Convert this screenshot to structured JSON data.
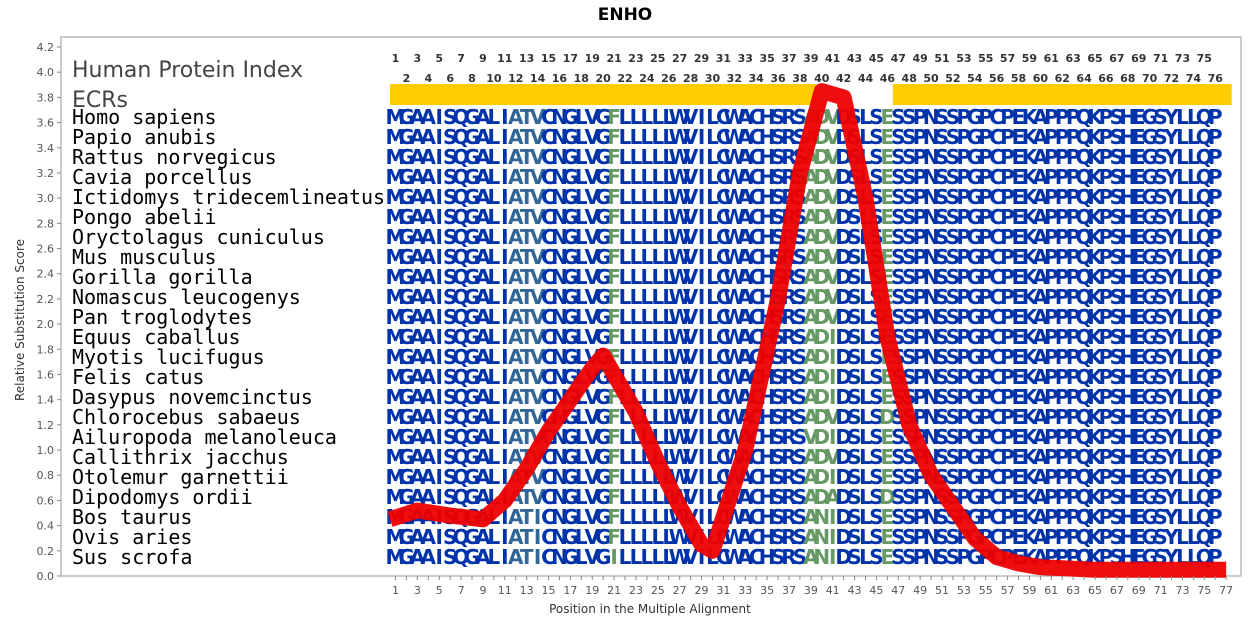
{
  "chart_data": {
    "type": "line",
    "title": "ENHO",
    "xlabel": "Position in the Multiple Alignment",
    "ylabel": "Relative Substitution Score",
    "xlim": [
      0.5,
      77.5
    ],
    "ylim": [
      0,
      4.2
    ],
    "y_ticks": [
      "0.0",
      "0.2",
      "0.4",
      "0.6",
      "0.8",
      "1.0",
      "1.2",
      "1.4",
      "1.6",
      "1.8",
      "2.0",
      "2.2",
      "2.4",
      "2.6",
      "2.8",
      "3.0",
      "3.2",
      "3.4",
      "3.6",
      "3.8",
      "4.0",
      "4.2"
    ],
    "x_ticks": [
      "1",
      "3",
      "5",
      "7",
      "9",
      "11",
      "13",
      "15",
      "17",
      "19",
      "21",
      "23",
      "25",
      "27",
      "29",
      "31",
      "33",
      "35",
      "37",
      "39",
      "41",
      "43",
      "45",
      "47",
      "49",
      "51",
      "53",
      "55",
      "57",
      "59",
      "61",
      "63",
      "65",
      "67",
      "69",
      "71",
      "73",
      "75",
      "77"
    ],
    "top_numbers_odd": [
      "1",
      "3",
      "5",
      "7",
      "9",
      "11",
      "13",
      "15",
      "17",
      "19",
      "21",
      "23",
      "25",
      "27",
      "29",
      "31",
      "33",
      "35",
      "37",
      "39",
      "41",
      "43",
      "45",
      "47",
      "49",
      "51",
      "53",
      "55",
      "57",
      "59",
      "61",
      "63",
      "65",
      "67",
      "69",
      "71",
      "73",
      "75"
    ],
    "top_numbers_even": [
      "2",
      "4",
      "6",
      "8",
      "10",
      "12",
      "14",
      "16",
      "18",
      "20",
      "22",
      "24",
      "26",
      "28",
      "30",
      "32",
      "34",
      "36",
      "38",
      "40",
      "42",
      "44",
      "46",
      "48",
      "50",
      "52",
      "54",
      "56",
      "58",
      "60",
      "62",
      "64",
      "66",
      "68",
      "70",
      "72",
      "74",
      "76"
    ],
    "series": [
      {
        "color": "#ee0000",
        "x": [
          0.5,
          3,
          6,
          9,
          11,
          13,
          15,
          17,
          19,
          20,
          21,
          23,
          25,
          27,
          29,
          30,
          33,
          36,
          38,
          40,
          42,
          44,
          46,
          48,
          50,
          52,
          54,
          56,
          58,
          60,
          65,
          70,
          77
        ],
        "y": [
          0.45,
          0.52,
          0.48,
          0.45,
          0.6,
          0.85,
          1.15,
          1.4,
          1.65,
          1.75,
          1.6,
          1.3,
          0.9,
          0.55,
          0.25,
          0.2,
          1.0,
          2.2,
          3.2,
          3.85,
          3.8,
          3.0,
          1.9,
          1.2,
          0.8,
          0.55,
          0.3,
          0.15,
          0.1,
          0.07,
          0.05,
          0.05,
          0.05
        ]
      }
    ],
    "ecr_segments": [
      [
        1,
        21
      ],
      [
        22,
        39
      ],
      [
        47,
        77
      ]
    ],
    "ecr_color": "#ffcc00",
    "grid": false,
    "legend": "none"
  },
  "labels": {
    "human_protein_index": "Human Protein Index",
    "ecrs": "ECRs"
  },
  "alignment": {
    "species": [
      "Homo sapiens",
      "Papio anubis",
      "Rattus norvegicus",
      "Cavia porcellus",
      "Ictidomys tridecemlineatus",
      "Pongo abelii",
      "Oryctolagus cuniculus",
      "Mus musculus",
      "Gorilla gorilla",
      "Nomascus leucogenys",
      "Pan troglodytes",
      "Equus caballus",
      "Myotis lucifugus",
      "Felis catus",
      "Dasypus novemcinctus",
      "Chlorocebus sabaeus",
      "Ailuropoda melanoleuca",
      "Callithrix jacchus",
      "Otolemur garnettii",
      "Dipodomys ordii",
      "Bos taurus",
      "Ovis aries",
      "Sus scrofa"
    ],
    "sequences": [
      "MGAAISQGALIATVCNGLVGFLLLLLWVILCWACHSRSADVDSLSESSPNSSPGPCPEKAPPPQKPSHEGSYLLQP",
      "MGAAISQGALIATVCNGLVGFLLLLLWVILCWACHSRSADVDSLSESSPNSSPGPCPEKAPPPQKPSHEGSYLLQP",
      "MGAAISQGALIATVCNGLVGFLLLLLWVILCWACHSRSADVDSLSESSPNSSPGPCPEKAPPPQKPSHEGSYLLQP",
      "MGAAISQGALIATVCNGLVGFLLLLLWVILCWACHSRSADVDSLSESSPNSSPGPCPEKAPPPQKPSHEGSYLLQP",
      "MGAAISQGALIATVCNGLVGFLLLLLWVILCWACHSRSADVDSLSESSPNSSPGPCPEKAPPPQKPSHEGSYLLQP",
      "MGAAISQGALIATVCNGLVGFLLLLLWVILCWACHSRSADVDSLSESSPNSSPGPCPEKAPPPQKPSHEGSYLLQP",
      "MGAAISQGALIATVCNGLVGFLLLLLWVILCWACHSRSADVDSLSESSPNSSPGPCPEKAPPPQKPSHEGSYLLQP",
      "MGAAISQGALIATVCNGLVGFLLLLLWVILCWACHSRSADVDSLSESSPNSSPGPCPEKAPPPQKPSHEGSYLLQP",
      "MGAAISQGALIATVCNGLVGFLLLLLWVILCWACHSRSADVDSLSESSPNSSPGPCPEKAPPPQKPSHEGSYLLQP",
      "MGAAISQGALIATVCNGLVGFLLLLLWVILCWACHSRSADVDSLSESSPNSSPGPCPEKAPPPQKPSHEGSYLLQP",
      "MGAAISQGALIATVCNGLVGFLLLLLWVILCWACHSRSADVDSLSESSPNSSPGPCPEKAPPPQKPSHEGSYLLQP",
      "MGAAISQGALIATVCNGLVGFLLLLLWVILCWACHSRSADIDSLSESSPNSSPGPCPEKAPPPQKPSHEGSYLLQP",
      "MGAAISQGALIATVCNGLVGFLLLLLWVILCWACHSRSADIDSLSESSPNSSPGPCPEKAPPPQKPSHEGSYLLQP",
      "MGAAISQGALIATVCNGLVGFLLLLLWVILCWACHSRSADIDSLSESSPNSSPGPCPEKAPPPQKPSHEGSYLLQP",
      "MGAAISQGALIATVCNGLVGFLLLLLWVILCWACHSRSADIDSLSESSPNSSPGPCPEKAPPPQKPSHEGSYLLQP",
      "MGAAISQGALIATVCNGLVGFLLLLLWVILCWACHSRSADVDSLSDSSPNSSPGPCPEKAPPPQKPSHEGSYLLQP",
      "MGAAISQGALIATVCNGLVGFLLLLLWVILCWACHSRSVDIDSLSESSPNSSPGPCPEKAPPPQKPSHEGSYLLQP",
      "MGAAISQGALIATVCNGLVGFLLLLLWVILCWACHSRSADVDSLSESSPNSSPGPCPEKAPPPQKPSHEGSYLLQP",
      "MGAAISQGALIATVCNGLVGFLLLLLWVILCWACHSRSADIDSLSESSPNSSPGPCPEKAPPPQKPSHEGSYLLQP",
      "MGAAISQGALIATVCNGLVGFLLLLLWVILCWACHSRSADADSLSDSSPNSSPGPCPEKAPPPQKPSHEGSYLLQP",
      "MGAAISQGALIATICNGLVGFLLLLLWVILCWACHSRSANIDSLSESSPNSSPGPCPEKAPPPQKPSHEGSYLLQP",
      "MGAAISQGALIATICNGLVGFLLLLLWVILCWACHSRSANIDSLSESSPNSSPGPCPEKAPPPQKPSHEGSYLLQP",
      "MGAAISQGALIATICNGLVGILLLLLWVILCWACHSRSANIDSLSESSPNSSPGPCPEKAPPPQKPSHEGSYLLQP"
    ],
    "colors": {
      "conserved": "#0033aa",
      "moderate": "#336699",
      "variable": "#669966"
    }
  }
}
